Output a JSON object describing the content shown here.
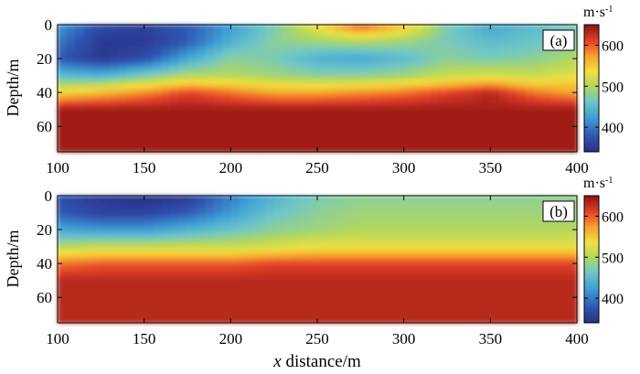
{
  "figure": {
    "shared_xlabel_italic": "x",
    "shared_xlabel_rest": " distance/m"
  },
  "panels": [
    {
      "tag": "(a)",
      "ylabel": "Depth/m",
      "cbar_label": "m·s",
      "cbar_label_sup": "-1"
    },
    {
      "tag": "(b)",
      "ylabel": "Depth/m",
      "cbar_label": "m·s",
      "cbar_label_sup": "-1"
    }
  ],
  "chart_data": [
    {
      "type": "heatmap",
      "title": "",
      "panel": "(a)",
      "xlabel": "",
      "ylabel": "Depth/m",
      "xlim": [
        100,
        400
      ],
      "ylim": [
        75,
        0
      ],
      "xticks": [
        100,
        150,
        200,
        250,
        300,
        350,
        400
      ],
      "yticks": [
        0,
        20,
        40,
        60
      ],
      "colorbar": {
        "label": "m·s-1",
        "ticks": [
          400,
          500,
          600
        ],
        "range": [
          340,
          650
        ],
        "colormap": "jet"
      },
      "value_grid": {
        "x": [
          100,
          125,
          150,
          175,
          200,
          225,
          250,
          275,
          300,
          325,
          350,
          375,
          400
        ],
        "depth": [
          0,
          10,
          20,
          30,
          40,
          50,
          60,
          70
        ],
        "values": [
          [
            420,
            370,
            360,
            380,
            420,
            470,
            540,
            610,
            560,
            470,
            430,
            450,
            470
          ],
          [
            400,
            350,
            350,
            380,
            440,
            480,
            490,
            500,
            490,
            470,
            450,
            460,
            480
          ],
          [
            380,
            350,
            370,
            430,
            480,
            470,
            440,
            430,
            450,
            480,
            470,
            480,
            500
          ],
          [
            450,
            440,
            470,
            500,
            500,
            490,
            480,
            480,
            490,
            510,
            520,
            510,
            530
          ],
          [
            540,
            560,
            580,
            610,
            590,
            570,
            570,
            580,
            590,
            610,
            630,
            590,
            570
          ],
          [
            640,
            640,
            640,
            640,
            640,
            640,
            640,
            640,
            640,
            640,
            640,
            640,
            640
          ],
          [
            640,
            640,
            640,
            640,
            640,
            640,
            640,
            640,
            640,
            640,
            640,
            640,
            640
          ],
          [
            640,
            640,
            640,
            640,
            640,
            640,
            640,
            640,
            640,
            640,
            640,
            640,
            640
          ]
        ]
      }
    },
    {
      "type": "heatmap",
      "title": "",
      "panel": "(b)",
      "xlabel": "x distance/m",
      "ylabel": "Depth/m",
      "xlim": [
        100,
        400
      ],
      "ylim": [
        75,
        0
      ],
      "xticks": [
        100,
        150,
        200,
        250,
        300,
        350,
        400
      ],
      "yticks": [
        0,
        20,
        40,
        60
      ],
      "colorbar": {
        "label": "m·s-1",
        "ticks": [
          400,
          500,
          600
        ],
        "range": [
          340,
          650
        ],
        "colormap": "jet"
      },
      "value_grid": {
        "x": [
          100,
          125,
          150,
          175,
          200,
          225,
          250,
          275,
          300,
          325,
          350,
          375,
          400
        ],
        "depth": [
          0,
          10,
          20,
          30,
          40,
          50,
          60,
          70
        ],
        "values": [
          [
            370,
            350,
            340,
            350,
            400,
            440,
            470,
            480,
            480,
            480,
            480,
            480,
            480
          ],
          [
            380,
            360,
            360,
            380,
            420,
            460,
            480,
            490,
            490,
            490,
            490,
            490,
            490
          ],
          [
            430,
            420,
            420,
            440,
            460,
            480,
            490,
            500,
            500,
            500,
            500,
            500,
            500
          ],
          [
            500,
            510,
            510,
            510,
            510,
            520,
            530,
            530,
            530,
            530,
            530,
            530,
            530
          ],
          [
            590,
            600,
            600,
            600,
            600,
            610,
            610,
            610,
            610,
            610,
            610,
            610,
            610
          ],
          [
            630,
            630,
            630,
            630,
            630,
            630,
            630,
            630,
            630,
            630,
            630,
            630,
            630
          ],
          [
            630,
            630,
            630,
            630,
            630,
            630,
            630,
            630,
            630,
            630,
            630,
            630,
            630
          ],
          [
            630,
            630,
            630,
            630,
            630,
            630,
            630,
            630,
            630,
            630,
            630,
            630,
            630
          ]
        ]
      }
    }
  ]
}
